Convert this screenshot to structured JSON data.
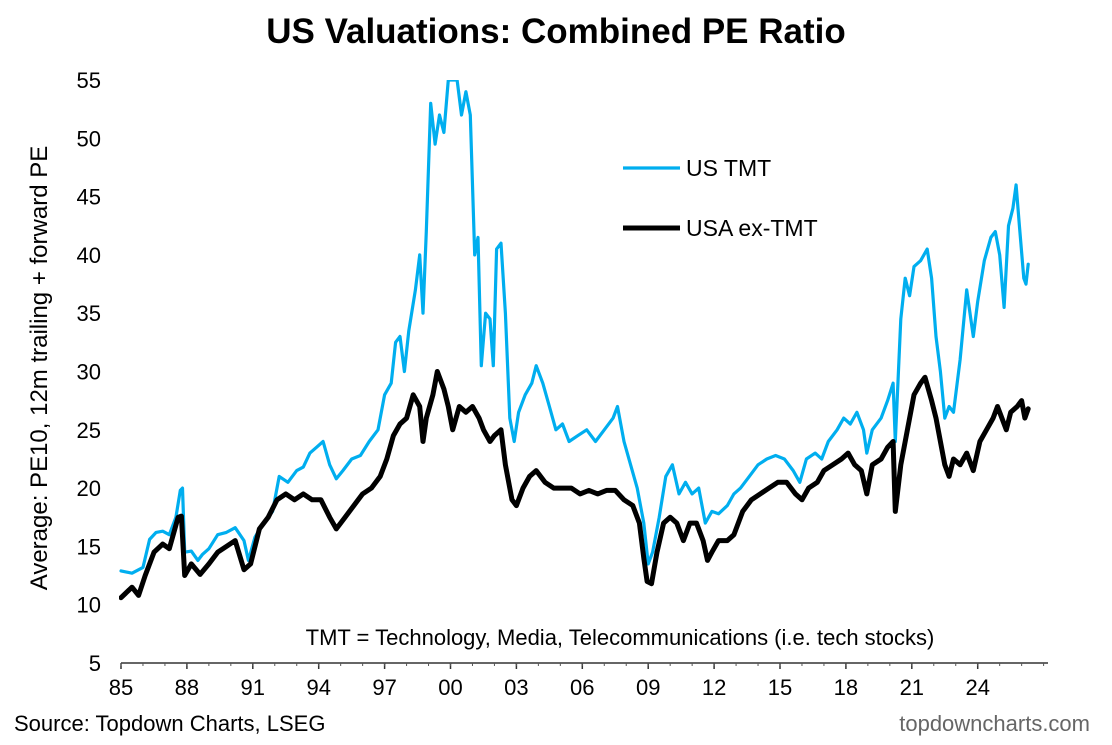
{
  "chart_data": {
    "type": "line",
    "title": "US Valuations: Combined PE Ratio",
    "ylabel": "Average: PE10, 12m trailing + forward PE",
    "ylim": [
      5,
      55
    ],
    "yticks": [
      5,
      10,
      15,
      20,
      25,
      30,
      35,
      40,
      45,
      50,
      55
    ],
    "xlim": [
      1985,
      2027.2
    ],
    "xticks": [
      {
        "value": 1985,
        "label": "85"
      },
      {
        "value": 1988,
        "label": "88"
      },
      {
        "value": 1991,
        "label": "91"
      },
      {
        "value": 1994,
        "label": "94"
      },
      {
        "value": 1997,
        "label": "97"
      },
      {
        "value": 2000,
        "label": "00"
      },
      {
        "value": 2003,
        "label": "03"
      },
      {
        "value": 2006,
        "label": "06"
      },
      {
        "value": 2009,
        "label": "09"
      },
      {
        "value": 2012,
        "label": "12"
      },
      {
        "value": 2015,
        "label": "15"
      },
      {
        "value": 2018,
        "label": "18"
      },
      {
        "value": 2021,
        "label": "21"
      },
      {
        "value": 2024,
        "label": "24"
      }
    ],
    "grid": false,
    "legend_position": "upper-right",
    "annotation": "TMT = Technology, Media, Telecommunications  (i.e. tech stocks)",
    "series": [
      {
        "name": "US TMT",
        "color": "#00AEEF",
        "points": [
          [
            1985.0,
            12.9
          ],
          [
            1985.5,
            12.7
          ],
          [
            1986.0,
            13.2
          ],
          [
            1986.3,
            15.6
          ],
          [
            1986.6,
            16.2
          ],
          [
            1986.9,
            16.3
          ],
          [
            1987.2,
            16.0
          ],
          [
            1987.5,
            17.5
          ],
          [
            1987.7,
            19.8
          ],
          [
            1987.8,
            20.0
          ],
          [
            1987.9,
            14.5
          ],
          [
            1988.2,
            14.6
          ],
          [
            1988.5,
            13.8
          ],
          [
            1988.7,
            14.3
          ],
          [
            1989.0,
            14.8
          ],
          [
            1989.4,
            16.0
          ],
          [
            1989.8,
            16.2
          ],
          [
            1990.2,
            16.6
          ],
          [
            1990.6,
            15.5
          ],
          [
            1990.8,
            13.8
          ],
          [
            1991.1,
            15.8
          ],
          [
            1991.5,
            17.0
          ],
          [
            1991.9,
            18.0
          ],
          [
            1992.2,
            21.0
          ],
          [
            1992.6,
            20.5
          ],
          [
            1993.0,
            21.5
          ],
          [
            1993.3,
            21.8
          ],
          [
            1993.6,
            23.0
          ],
          [
            1993.9,
            23.5
          ],
          [
            1994.2,
            24.0
          ],
          [
            1994.5,
            22.0
          ],
          [
            1994.8,
            20.8
          ],
          [
            1995.1,
            21.5
          ],
          [
            1995.5,
            22.5
          ],
          [
            1995.9,
            22.8
          ],
          [
            1996.3,
            24.0
          ],
          [
            1996.7,
            25.0
          ],
          [
            1997.0,
            28.0
          ],
          [
            1997.3,
            29.0
          ],
          [
            1997.5,
            32.5
          ],
          [
            1997.7,
            33.0
          ],
          [
            1997.9,
            30.0
          ],
          [
            1998.1,
            33.5
          ],
          [
            1998.4,
            37.0
          ],
          [
            1998.6,
            40.0
          ],
          [
            1998.75,
            35.0
          ],
          [
            1998.9,
            42.0
          ],
          [
            1999.1,
            53.0
          ],
          [
            1999.3,
            49.5
          ],
          [
            1999.5,
            52.0
          ],
          [
            1999.7,
            50.5
          ],
          [
            1999.9,
            55.0
          ],
          [
            2000.1,
            55.0
          ],
          [
            2000.3,
            55.0
          ],
          [
            2000.5,
            52.0
          ],
          [
            2000.7,
            54.0
          ],
          [
            2000.9,
            52.0
          ],
          [
            2001.1,
            40.0
          ],
          [
            2001.25,
            41.5
          ],
          [
            2001.4,
            30.5
          ],
          [
            2001.6,
            35.0
          ],
          [
            2001.8,
            34.5
          ],
          [
            2001.95,
            30.5
          ],
          [
            2002.1,
            40.5
          ],
          [
            2002.3,
            41.0
          ],
          [
            2002.5,
            35.0
          ],
          [
            2002.7,
            26.0
          ],
          [
            2002.9,
            24.0
          ],
          [
            2003.1,
            26.5
          ],
          [
            2003.4,
            28.0
          ],
          [
            2003.7,
            29.0
          ],
          [
            2003.9,
            30.5
          ],
          [
            2004.2,
            29.0
          ],
          [
            2004.5,
            27.0
          ],
          [
            2004.8,
            25.0
          ],
          [
            2005.1,
            25.5
          ],
          [
            2005.4,
            24.0
          ],
          [
            2005.8,
            24.5
          ],
          [
            2006.2,
            25.0
          ],
          [
            2006.6,
            24.0
          ],
          [
            2007.0,
            25.0
          ],
          [
            2007.4,
            26.0
          ],
          [
            2007.6,
            27.0
          ],
          [
            2007.9,
            24.0
          ],
          [
            2008.2,
            22.0
          ],
          [
            2008.5,
            20.0
          ],
          [
            2008.8,
            17.0
          ],
          [
            2009.0,
            13.5
          ],
          [
            2009.2,
            14.5
          ],
          [
            2009.5,
            17.5
          ],
          [
            2009.8,
            21.0
          ],
          [
            2010.1,
            22.0
          ],
          [
            2010.4,
            19.5
          ],
          [
            2010.7,
            20.5
          ],
          [
            2011.0,
            19.5
          ],
          [
            2011.3,
            20.0
          ],
          [
            2011.6,
            17.0
          ],
          [
            2011.9,
            18.0
          ],
          [
            2012.2,
            17.8
          ],
          [
            2012.6,
            18.5
          ],
          [
            2012.9,
            19.5
          ],
          [
            2013.2,
            20.0
          ],
          [
            2013.6,
            21.0
          ],
          [
            2014.0,
            22.0
          ],
          [
            2014.4,
            22.5
          ],
          [
            2014.8,
            22.8
          ],
          [
            2015.2,
            22.5
          ],
          [
            2015.6,
            21.5
          ],
          [
            2015.9,
            20.5
          ],
          [
            2016.2,
            22.5
          ],
          [
            2016.6,
            23.0
          ],
          [
            2016.9,
            22.5
          ],
          [
            2017.2,
            24.0
          ],
          [
            2017.6,
            25.0
          ],
          [
            2017.9,
            26.0
          ],
          [
            2018.2,
            25.5
          ],
          [
            2018.5,
            26.5
          ],
          [
            2018.8,
            25.0
          ],
          [
            2018.95,
            23.0
          ],
          [
            2019.2,
            25.0
          ],
          [
            2019.6,
            26.0
          ],
          [
            2019.9,
            27.5
          ],
          [
            2020.15,
            29.0
          ],
          [
            2020.25,
            24.0
          ],
          [
            2020.5,
            34.5
          ],
          [
            2020.7,
            38.0
          ],
          [
            2020.9,
            36.5
          ],
          [
            2021.1,
            39.0
          ],
          [
            2021.4,
            39.5
          ],
          [
            2021.7,
            40.5
          ],
          [
            2021.9,
            38.0
          ],
          [
            2022.1,
            33.0
          ],
          [
            2022.3,
            30.0
          ],
          [
            2022.5,
            26.0
          ],
          [
            2022.7,
            27.0
          ],
          [
            2022.9,
            26.5
          ],
          [
            2023.2,
            31.0
          ],
          [
            2023.5,
            37.0
          ],
          [
            2023.8,
            33.0
          ],
          [
            2024.0,
            36.0
          ],
          [
            2024.3,
            39.5
          ],
          [
            2024.6,
            41.5
          ],
          [
            2024.8,
            42.0
          ],
          [
            2025.0,
            40.0
          ],
          [
            2025.2,
            35.5
          ],
          [
            2025.4,
            42.5
          ],
          [
            2025.6,
            44.0
          ],
          [
            2025.75,
            46.0
          ],
          [
            2025.9,
            42.5
          ],
          [
            2026.1,
            38.0
          ],
          [
            2026.2,
            37.5
          ],
          [
            2026.3,
            39.2
          ]
        ]
      },
      {
        "name": "USA ex-TMT",
        "color": "#000000",
        "points": [
          [
            1985.0,
            10.6
          ],
          [
            1985.5,
            11.5
          ],
          [
            1985.8,
            10.8
          ],
          [
            1986.1,
            12.5
          ],
          [
            1986.5,
            14.5
          ],
          [
            1986.9,
            15.2
          ],
          [
            1987.2,
            14.8
          ],
          [
            1987.6,
            17.5
          ],
          [
            1987.75,
            17.6
          ],
          [
            1987.9,
            12.5
          ],
          [
            1988.2,
            13.5
          ],
          [
            1988.6,
            12.6
          ],
          [
            1989.0,
            13.5
          ],
          [
            1989.4,
            14.5
          ],
          [
            1989.8,
            15.0
          ],
          [
            1990.2,
            15.5
          ],
          [
            1990.6,
            13.0
          ],
          [
            1990.9,
            13.5
          ],
          [
            1991.3,
            16.5
          ],
          [
            1991.7,
            17.5
          ],
          [
            1992.1,
            19.0
          ],
          [
            1992.5,
            19.5
          ],
          [
            1992.9,
            19.0
          ],
          [
            1993.3,
            19.5
          ],
          [
            1993.7,
            19.0
          ],
          [
            1994.1,
            19.0
          ],
          [
            1994.5,
            17.5
          ],
          [
            1994.8,
            16.5
          ],
          [
            1995.2,
            17.5
          ],
          [
            1995.6,
            18.5
          ],
          [
            1996.0,
            19.5
          ],
          [
            1996.4,
            20.0
          ],
          [
            1996.8,
            21.0
          ],
          [
            1997.1,
            22.5
          ],
          [
            1997.4,
            24.5
          ],
          [
            1997.7,
            25.5
          ],
          [
            1998.0,
            26.0
          ],
          [
            1998.3,
            28.0
          ],
          [
            1998.6,
            27.0
          ],
          [
            1998.75,
            24.0
          ],
          [
            1998.9,
            26.0
          ],
          [
            1999.2,
            28.0
          ],
          [
            1999.4,
            30.0
          ],
          [
            1999.7,
            28.5
          ],
          [
            1999.9,
            27.0
          ],
          [
            2000.1,
            25.0
          ],
          [
            2000.4,
            27.0
          ],
          [
            2000.7,
            26.5
          ],
          [
            2001.0,
            27.0
          ],
          [
            2001.3,
            26.0
          ],
          [
            2001.5,
            25.0
          ],
          [
            2001.8,
            24.0
          ],
          [
            2002.0,
            24.5
          ],
          [
            2002.3,
            25.0
          ],
          [
            2002.5,
            22.0
          ],
          [
            2002.8,
            19.0
          ],
          [
            2003.0,
            18.5
          ],
          [
            2003.3,
            20.0
          ],
          [
            2003.6,
            21.0
          ],
          [
            2003.9,
            21.5
          ],
          [
            2004.3,
            20.5
          ],
          [
            2004.7,
            20.0
          ],
          [
            2005.1,
            20.0
          ],
          [
            2005.5,
            20.0
          ],
          [
            2005.9,
            19.5
          ],
          [
            2006.3,
            19.8
          ],
          [
            2006.7,
            19.5
          ],
          [
            2007.1,
            19.8
          ],
          [
            2007.5,
            19.8
          ],
          [
            2007.9,
            19.0
          ],
          [
            2008.3,
            18.5
          ],
          [
            2008.6,
            17.0
          ],
          [
            2008.8,
            14.0
          ],
          [
            2008.95,
            12.0
          ],
          [
            2009.15,
            11.8
          ],
          [
            2009.4,
            14.5
          ],
          [
            2009.7,
            17.0
          ],
          [
            2010.0,
            17.5
          ],
          [
            2010.3,
            17.0
          ],
          [
            2010.6,
            15.5
          ],
          [
            2010.9,
            17.0
          ],
          [
            2011.2,
            17.0
          ],
          [
            2011.5,
            15.5
          ],
          [
            2011.7,
            13.8
          ],
          [
            2011.9,
            14.5
          ],
          [
            2012.2,
            15.5
          ],
          [
            2012.6,
            15.5
          ],
          [
            2012.9,
            16.0
          ],
          [
            2013.3,
            18.0
          ],
          [
            2013.7,
            19.0
          ],
          [
            2014.1,
            19.5
          ],
          [
            2014.5,
            20.0
          ],
          [
            2014.9,
            20.5
          ],
          [
            2015.3,
            20.5
          ],
          [
            2015.7,
            19.5
          ],
          [
            2016.0,
            19.0
          ],
          [
            2016.3,
            20.0
          ],
          [
            2016.7,
            20.5
          ],
          [
            2017.0,
            21.5
          ],
          [
            2017.4,
            22.0
          ],
          [
            2017.8,
            22.5
          ],
          [
            2018.1,
            23.0
          ],
          [
            2018.4,
            22.0
          ],
          [
            2018.7,
            21.5
          ],
          [
            2018.95,
            19.5
          ],
          [
            2019.2,
            22.0
          ],
          [
            2019.6,
            22.5
          ],
          [
            2019.9,
            23.5
          ],
          [
            2020.15,
            24.0
          ],
          [
            2020.25,
            18.0
          ],
          [
            2020.5,
            22.0
          ],
          [
            2020.8,
            25.0
          ],
          [
            2021.1,
            28.0
          ],
          [
            2021.4,
            29.0
          ],
          [
            2021.6,
            29.5
          ],
          [
            2021.9,
            27.5
          ],
          [
            2022.1,
            26.0
          ],
          [
            2022.3,
            24.0
          ],
          [
            2022.5,
            22.0
          ],
          [
            2022.7,
            21.0
          ],
          [
            2022.9,
            22.5
          ],
          [
            2023.2,
            22.0
          ],
          [
            2023.5,
            23.0
          ],
          [
            2023.8,
            21.5
          ],
          [
            2024.1,
            24.0
          ],
          [
            2024.4,
            25.0
          ],
          [
            2024.7,
            26.0
          ],
          [
            2024.9,
            27.0
          ],
          [
            2025.1,
            26.0
          ],
          [
            2025.3,
            25.0
          ],
          [
            2025.5,
            26.5
          ],
          [
            2025.8,
            27.0
          ],
          [
            2026.0,
            27.5
          ],
          [
            2026.15,
            26.0
          ],
          [
            2026.3,
            26.8
          ]
        ]
      }
    ]
  },
  "source": "Source: Topdown Charts, LSEG",
  "brand": "topdowncharts.com"
}
